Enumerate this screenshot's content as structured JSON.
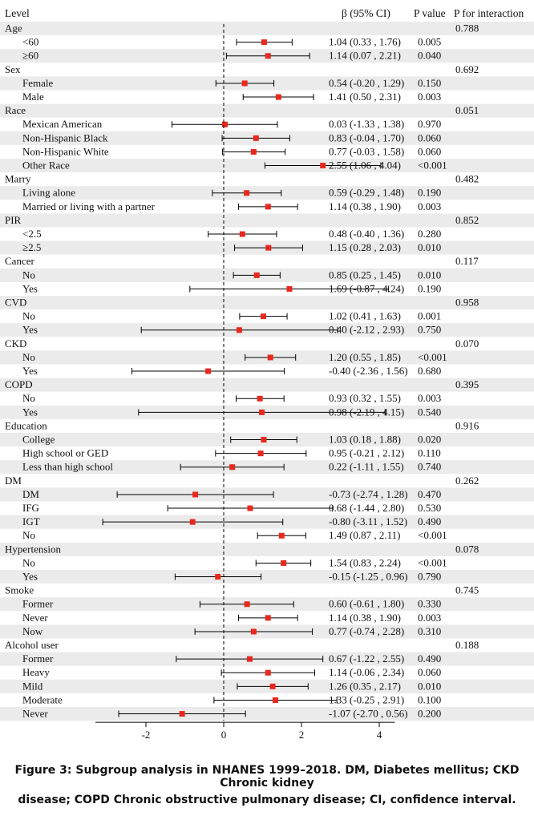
{
  "headers": {
    "level": "Level",
    "beta": "β (95% CI)",
    "pvalue": "P value",
    "pinteraction": "P for interaction"
  },
  "caption": {
    "line1": "Figure 3: Subgroup analysis in NHANES 1999–2018. DM, Diabetes mellitus; CKD Chronic kidney",
    "line2": "disease; COPD Chronic obstructive pulmonary disease; CI, confidence interval."
  },
  "colors": {
    "marker": "#e8281e",
    "line": "#000000",
    "ref": "#000000"
  },
  "chart_data": {
    "type": "forest",
    "xlim": [
      -3.3,
      4.4
    ],
    "xticks": [
      -2,
      0,
      2,
      4
    ],
    "reference_line": 0,
    "groups": [
      {
        "name": "Age",
        "p_interaction": "0.788",
        "rows": [
          {
            "label": "<60",
            "beta": 1.04,
            "lo": 0.33,
            "hi": 1.76,
            "ci_text": "1.04 (0.33 , 1.76)",
            "p": "0.005"
          },
          {
            "label": "≥60",
            "beta": 1.14,
            "lo": 0.07,
            "hi": 2.21,
            "ci_text": "1.14 (0.07 , 2.21)",
            "p": "0.040"
          }
        ]
      },
      {
        "name": "Sex",
        "p_interaction": "0.692",
        "rows": [
          {
            "label": "Female",
            "beta": 0.54,
            "lo": -0.2,
            "hi": 1.29,
            "ci_text": "0.54 (-0.20 , 1.29)",
            "p": "0.150"
          },
          {
            "label": "Male",
            "beta": 1.41,
            "lo": 0.5,
            "hi": 2.31,
            "ci_text": "1.41 (0.50 , 2.31)",
            "p": "0.003"
          }
        ]
      },
      {
        "name": "Race",
        "p_interaction": "0.051",
        "rows": [
          {
            "label": "Mexican American",
            "beta": 0.03,
            "lo": -1.33,
            "hi": 1.38,
            "ci_text": "0.03 (-1.33 , 1.38)",
            "p": "0.970"
          },
          {
            "label": "Non-Hispanic Black",
            "beta": 0.83,
            "lo": -0.04,
            "hi": 1.7,
            "ci_text": "0.83 (-0.04 , 1.70)",
            "p": "0.060"
          },
          {
            "label": "Non-Hispanic White",
            "beta": 0.77,
            "lo": -0.03,
            "hi": 1.58,
            "ci_text": "0.77 (-0.03 , 1.58)",
            "p": "0.060"
          },
          {
            "label": "Other Race",
            "beta": 2.55,
            "lo": 1.06,
            "hi": 4.04,
            "ci_text": "2.55 (1.06 , 4.04)",
            "p": "<0.001"
          }
        ]
      },
      {
        "name": "Marry",
        "p_interaction": "0.482",
        "rows": [
          {
            "label": "Living alone",
            "beta": 0.59,
            "lo": -0.29,
            "hi": 1.48,
            "ci_text": "0.59 (-0.29 , 1.48)",
            "p": "0.190"
          },
          {
            "label": "Married or living with a partner",
            "beta": 1.14,
            "lo": 0.38,
            "hi": 1.9,
            "ci_text": "1.14 (0.38 , 1.90)",
            "p": "0.003"
          }
        ]
      },
      {
        "name": "PIR",
        "p_interaction": "0.852",
        "rows": [
          {
            "label": "<2.5",
            "beta": 0.48,
            "lo": -0.4,
            "hi": 1.36,
            "ci_text": "0.48 (-0.40 , 1.36)",
            "p": "0.280"
          },
          {
            "label": "≥2.5",
            "beta": 1.15,
            "lo": 0.28,
            "hi": 2.03,
            "ci_text": "1.15 (0.28 , 2.03)",
            "p": "0.010"
          }
        ]
      },
      {
        "name": "Cancer",
        "p_interaction": "0.117",
        "rows": [
          {
            "label": "No",
            "beta": 0.85,
            "lo": 0.25,
            "hi": 1.45,
            "ci_text": "0.85 (0.25 , 1.45)",
            "p": "0.010"
          },
          {
            "label": "Yes",
            "beta": 1.69,
            "lo": -0.87,
            "hi": 4.24,
            "ci_text": "1.69 (-0.87 , 4.24)",
            "p": "0.190"
          }
        ]
      },
      {
        "name": "CVD",
        "p_interaction": "0.958",
        "rows": [
          {
            "label": "No",
            "beta": 1.02,
            "lo": 0.41,
            "hi": 1.63,
            "ci_text": "1.02 (0.41 , 1.63)",
            "p": "0.001"
          },
          {
            "label": "Yes",
            "beta": 0.4,
            "lo": -2.12,
            "hi": 2.93,
            "ci_text": "0.40 (-2.12 , 2.93)",
            "p": "0.750"
          }
        ]
      },
      {
        "name": "CKD",
        "p_interaction": "0.070",
        "rows": [
          {
            "label": "No",
            "beta": 1.2,
            "lo": 0.55,
            "hi": 1.85,
            "ci_text": "1.20 (0.55 , 1.85)",
            "p": "<0.001"
          },
          {
            "label": "Yes",
            "beta": -0.4,
            "lo": -2.36,
            "hi": 1.56,
            "ci_text": "-0.40 (-2.36 , 1.56)",
            "p": "0.680"
          }
        ]
      },
      {
        "name": "COPD",
        "p_interaction": "0.395",
        "rows": [
          {
            "label": "No",
            "beta": 0.93,
            "lo": 0.32,
            "hi": 1.55,
            "ci_text": "0.93 (0.32 , 1.55)",
            "p": "0.003"
          },
          {
            "label": "Yes",
            "beta": 0.98,
            "lo": -2.19,
            "hi": 4.15,
            "ci_text": "0.98 (-2.19 , 4.15)",
            "p": "0.540"
          }
        ]
      },
      {
        "name": "Education",
        "p_interaction": "0.916",
        "rows": [
          {
            "label": "College",
            "beta": 1.03,
            "lo": 0.18,
            "hi": 1.88,
            "ci_text": "1.03 (0.18 , 1.88)",
            "p": "0.020"
          },
          {
            "label": "High school or GED",
            "beta": 0.95,
            "lo": -0.21,
            "hi": 2.12,
            "ci_text": "0.95 (-0.21 , 2.12)",
            "p": "0.110"
          },
          {
            "label": "Less than high school",
            "beta": 0.22,
            "lo": -1.11,
            "hi": 1.55,
            "ci_text": "0.22 (-1.11 , 1.55)",
            "p": "0.740"
          }
        ]
      },
      {
        "name": "DM",
        "p_interaction": "0.262",
        "rows": [
          {
            "label": "DM",
            "beta": -0.73,
            "lo": -2.74,
            "hi": 1.28,
            "ci_text": "-0.73 (-2.74 , 1.28)",
            "p": "0.470"
          },
          {
            "label": "IFG",
            "beta": 0.68,
            "lo": -1.44,
            "hi": 2.8,
            "ci_text": "0.68 (-1.44 , 2.80)",
            "p": "0.530"
          },
          {
            "label": "IGT",
            "beta": -0.8,
            "lo": -3.11,
            "hi": 1.52,
            "ci_text": "-0.80 (-3.11 , 1.52)",
            "p": "0.490"
          },
          {
            "label": "No",
            "beta": 1.49,
            "lo": 0.87,
            "hi": 2.11,
            "ci_text": "1.49 (0.87 , 2.11)",
            "p": "<0.001"
          }
        ]
      },
      {
        "name": "Hypertension",
        "p_interaction": "0.078",
        "rows": [
          {
            "label": "No",
            "beta": 1.54,
            "lo": 0.83,
            "hi": 2.24,
            "ci_text": "1.54 (0.83 , 2.24)",
            "p": "<0.001"
          },
          {
            "label": "Yes",
            "beta": -0.15,
            "lo": -1.25,
            "hi": 0.96,
            "ci_text": "-0.15 (-1.25 , 0.96)",
            "p": "0.790"
          }
        ]
      },
      {
        "name": "Smoke",
        "p_interaction": "0.745",
        "rows": [
          {
            "label": "Former",
            "beta": 0.6,
            "lo": -0.61,
            "hi": 1.8,
            "ci_text": "0.60 (-0.61 , 1.80)",
            "p": "0.330"
          },
          {
            "label": "Never",
            "beta": 1.14,
            "lo": 0.38,
            "hi": 1.9,
            "ci_text": "1.14 (0.38 , 1.90)",
            "p": "0.003"
          },
          {
            "label": "Now",
            "beta": 0.77,
            "lo": -0.74,
            "hi": 2.28,
            "ci_text": "0.77 (-0.74 , 2.28)",
            "p": "0.310"
          }
        ]
      },
      {
        "name": "Alcohol user",
        "p_interaction": "0.188",
        "rows": [
          {
            "label": "Former",
            "beta": 0.67,
            "lo": -1.22,
            "hi": 2.55,
            "ci_text": "0.67 (-1.22 , 2.55)",
            "p": "0.490"
          },
          {
            "label": "Heavy",
            "beta": 1.14,
            "lo": -0.06,
            "hi": 2.34,
            "ci_text": "1.14 (-0.06 , 2.34)",
            "p": "0.060"
          },
          {
            "label": "Mild",
            "beta": 1.26,
            "lo": 0.35,
            "hi": 2.17,
            "ci_text": "1.26 (0.35 , 2.17)",
            "p": "0.010"
          },
          {
            "label": "Moderate",
            "beta": 1.33,
            "lo": -0.25,
            "hi": 2.91,
            "ci_text": "1.33 (-0.25 , 2.91)",
            "p": "0.100"
          },
          {
            "label": "Never",
            "beta": -1.07,
            "lo": -2.7,
            "hi": 0.56,
            "ci_text": "-1.07 (-2.70 , 0.56)",
            "p": "0.200"
          }
        ]
      }
    ]
  }
}
